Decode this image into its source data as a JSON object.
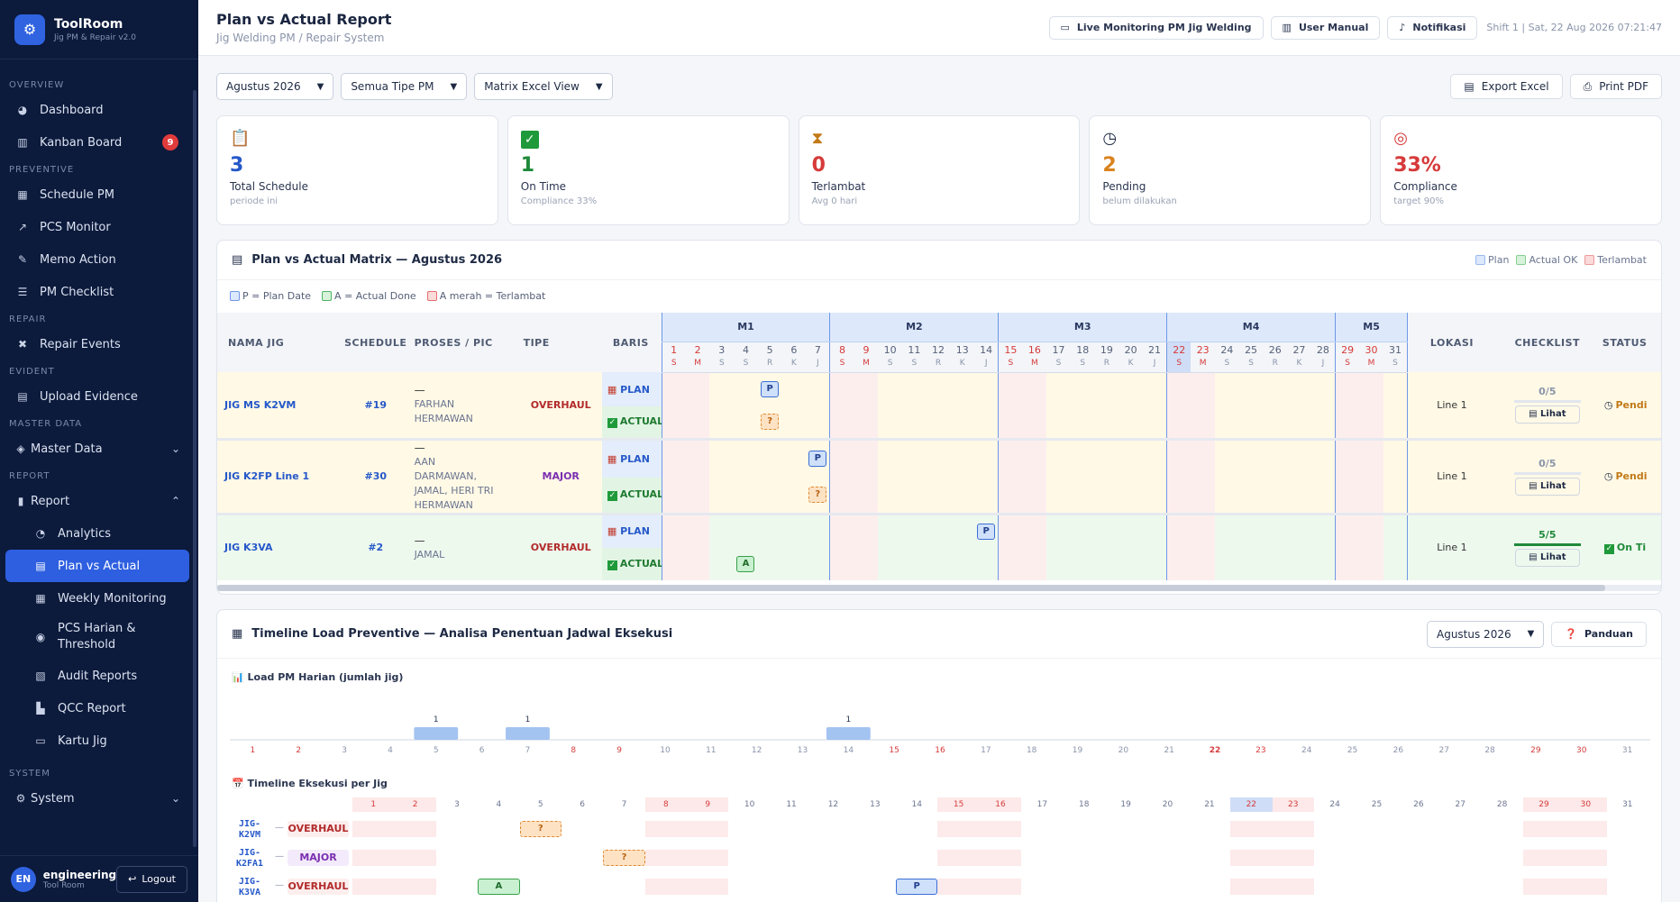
{
  "brand": {
    "name": "ToolRoom",
    "sub": "Jig PM & Repair v2.0"
  },
  "nav": {
    "overview": "OVERVIEW",
    "dashboard": "Dashboard",
    "kanban": "Kanban Board",
    "kanban_badge": "9",
    "preventive": "PREVENTIVE",
    "schedule": "Schedule PM",
    "pcs": "PCS Monitor",
    "memo": "Memo Action",
    "checklist": "PM Checklist",
    "repair": "REPAIR",
    "repair_events": "Repair Events",
    "evident": "EVIDENT",
    "upload": "Upload Evidence",
    "master": "MASTER DATA",
    "master_data": "Master Data",
    "report": "REPORT",
    "report_item": "Report",
    "analytics": "Analytics",
    "pva": "Plan vs Actual",
    "weekly": "Weekly Monitoring",
    "pcs_harian": "PCS Harian &",
    "pcs_harian2": "Threshold",
    "audit": "Audit Reports",
    "qcc": "QCC Report",
    "kartu": "Kartu Jig",
    "system_sec": "SYSTEM",
    "system": "System"
  },
  "user": {
    "initials": "EN",
    "name": "engineering",
    "role": "Tool Room",
    "logout": "Logout"
  },
  "header": {
    "title": "Plan vs Actual Report",
    "subtitle": "Jig Welding PM / Repair System",
    "live": "Live Monitoring PM Jig Welding",
    "manual": "User Manual",
    "notif": "Notifikasi",
    "shift": "Shift 1 | Sat, 22 Aug 2026 07:21:47"
  },
  "filters": {
    "month": "Agustus 2026",
    "type": "Semua Tipe PM",
    "view": "Matrix Excel View",
    "export": "Export Excel",
    "print": "Print PDF"
  },
  "cards": [
    {
      "value": "3",
      "label": "Total Schedule",
      "sub": "periode ini",
      "color": "#2558c9"
    },
    {
      "value": "1",
      "label": "On Time",
      "sub": "Compliance 33%",
      "color": "#1f8a3a"
    },
    {
      "value": "0",
      "label": "Terlambat",
      "sub": "Avg 0 hari",
      "color": "#d63a3a"
    },
    {
      "value": "2",
      "label": "Pending",
      "sub": "belum dilakukan",
      "color": "#d9831f"
    },
    {
      "value": "33%",
      "label": "Compliance",
      "sub": "target 90%",
      "color": "#d63a3a"
    }
  ],
  "matrix": {
    "title": "Plan vs Actual Matrix — Agustus 2026",
    "legend": {
      "plan": "Plan",
      "actual": "Actual OK",
      "late": "Terlambat"
    },
    "legend2": {
      "p": "P = Plan Date",
      "a": "A = Actual Done",
      "r": "A merah = Terlambat"
    },
    "cols": {
      "nama": "NAMA JIG",
      "schedule": "SCHEDULE",
      "proses": "PROSES / PIC",
      "tipe": "TIPE",
      "baris": "BARIS",
      "lokasi": "LOKASI",
      "checklist": "CHECKLIST",
      "status": "STATUS"
    },
    "weeks": [
      "M1",
      "M2",
      "M3",
      "M4",
      "M5"
    ],
    "plan_label": "PLAN",
    "actual_label": "ACTUAL",
    "lihat": "Lihat",
    "rows": [
      {
        "name": "JIG MS K2VM",
        "schedule": "#19",
        "dash": "—",
        "pic": "FARHAN HERMAWAN",
        "tipe": "OVERHAUL",
        "lokasi": "Line 1",
        "check": "0/5",
        "status": "Pendi",
        "plan_day": 5,
        "actual_day": 5,
        "actual_mark": "?"
      },
      {
        "name": "JIG K2FP Line 1",
        "schedule": "#30",
        "dash": "—",
        "pic": "AAN DARMAWAN, JAMAL, HERI TRI HERMAWAN",
        "tipe": "MAJOR",
        "lokasi": "Line 1",
        "check": "0/5",
        "status": "Pendi",
        "plan_day": 7,
        "actual_day": 7,
        "actual_mark": "?"
      },
      {
        "name": "JIG K3VA",
        "schedule": "#2",
        "dash": "—",
        "pic": "JAMAL",
        "tipe": "OVERHAUL",
        "lokasi": "Line 1",
        "check": "5/5",
        "status": "On Ti",
        "plan_day": 14,
        "actual_day": 4,
        "actual_mark": "A"
      }
    ]
  },
  "timeline": {
    "title": "Timeline Load Preventive — Analisa Penentuan Jadwal Eksekusi",
    "month": "Agustus 2026",
    "guide": "Panduan",
    "chart_title": "Load PM Harian (jumlah jig)",
    "exec_title": "Timeline Eksekusi per Jig",
    "rows": [
      {
        "name1": "JIG-",
        "name2": "K2VM",
        "tipe": "OVERHAUL",
        "mark": "?",
        "day": 5
      },
      {
        "name1": "JIG-",
        "name2": "K2FA1",
        "tipe": "MAJOR",
        "mark": "?",
        "day": 7
      },
      {
        "name1": "JIG-",
        "name2": "K3VA",
        "tipe": "OVERHAUL",
        "mark": "A",
        "day": 4,
        "mark2": "P",
        "day2": 14
      }
    ]
  },
  "chart_data": {
    "type": "bar",
    "title": "Load PM Harian (jumlah jig)",
    "categories": [
      "1",
      "2",
      "3",
      "4",
      "5",
      "6",
      "7",
      "8",
      "9",
      "10",
      "11",
      "12",
      "13",
      "14",
      "15",
      "16",
      "17",
      "18",
      "19",
      "20",
      "21",
      "22",
      "23",
      "24",
      "25",
      "26",
      "27",
      "28",
      "29",
      "30",
      "31"
    ],
    "values": [
      0,
      0,
      0,
      0,
      1,
      0,
      1,
      0,
      0,
      0,
      0,
      0,
      0,
      1,
      0,
      0,
      0,
      0,
      0,
      0,
      0,
      0,
      0,
      0,
      0,
      0,
      0,
      0,
      0,
      0,
      0
    ]
  },
  "days": [
    {
      "d": "1",
      "n": "S"
    },
    {
      "d": "2",
      "n": "M"
    },
    {
      "d": "3",
      "n": "S"
    },
    {
      "d": "4",
      "n": "S"
    },
    {
      "d": "5",
      "n": "R"
    },
    {
      "d": "6",
      "n": "K"
    },
    {
      "d": "7",
      "n": "J"
    },
    {
      "d": "8",
      "n": "S"
    },
    {
      "d": "9",
      "n": "M"
    },
    {
      "d": "10",
      "n": "S"
    },
    {
      "d": "11",
      "n": "S"
    },
    {
      "d": "12",
      "n": "R"
    },
    {
      "d": "13",
      "n": "K"
    },
    {
      "d": "14",
      "n": "J"
    },
    {
      "d": "15",
      "n": "S"
    },
    {
      "d": "16",
      "n": "M"
    },
    {
      "d": "17",
      "n": "S"
    },
    {
      "d": "18",
      "n": "S"
    },
    {
      "d": "19",
      "n": "R"
    },
    {
      "d": "20",
      "n": "K"
    },
    {
      "d": "21",
      "n": "J"
    },
    {
      "d": "22",
      "n": "S"
    },
    {
      "d": "23",
      "n": "M"
    },
    {
      "d": "24",
      "n": "S"
    },
    {
      "d": "25",
      "n": "S"
    },
    {
      "d": "26",
      "n": "R"
    },
    {
      "d": "27",
      "n": "K"
    },
    {
      "d": "28",
      "n": "J"
    },
    {
      "d": "29",
      "n": "S"
    },
    {
      "d": "30",
      "n": "M"
    },
    {
      "d": "31",
      "n": "S"
    }
  ]
}
